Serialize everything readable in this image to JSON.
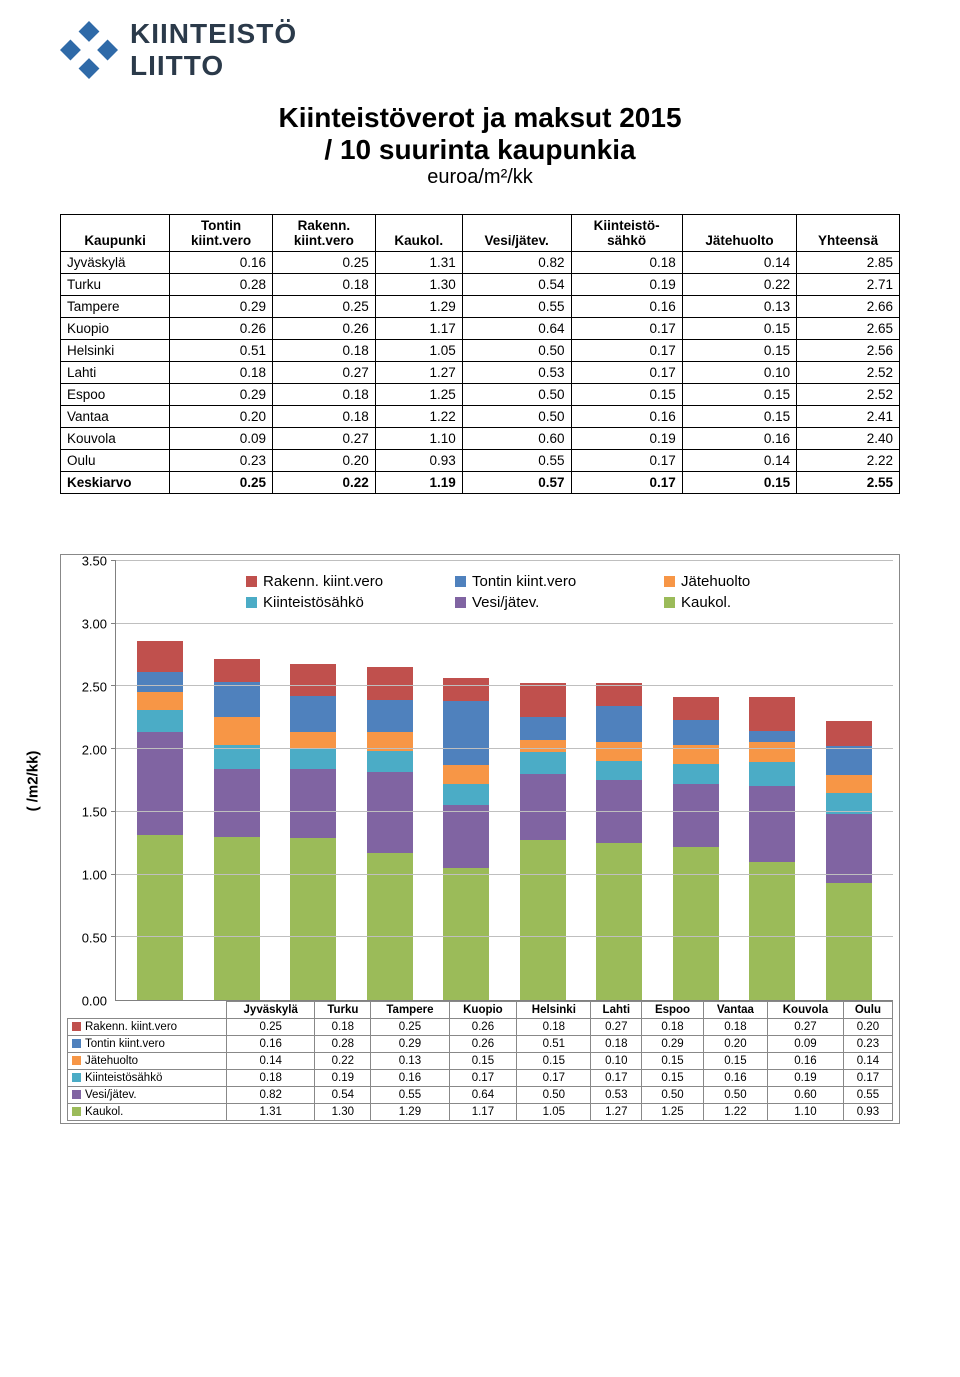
{
  "logo": {
    "line1": "KIINTEISTÖ",
    "line2": "LIITTO",
    "icon_color": "#2f6aa8"
  },
  "title": {
    "line1": "Kiinteistöverot ja maksut 2015",
    "line2": "/ 10 suurinta kaupunkia",
    "subtitle": "euroa/m²/kk"
  },
  "table": {
    "headers": [
      "Kaupunki",
      "Tontin kiint.vero",
      "Rakenn. kiint.vero",
      "Kaukol.",
      "Vesi/jätev.",
      "Kiinteistö-sähkö",
      "Jätehuolto",
      "Yhteensä"
    ],
    "rows": [
      [
        "Jyväskylä",
        "0.16",
        "0.25",
        "1.31",
        "0.82",
        "0.18",
        "0.14",
        "2.85"
      ],
      [
        "Turku",
        "0.28",
        "0.18",
        "1.30",
        "0.54",
        "0.19",
        "0.22",
        "2.71"
      ],
      [
        "Tampere",
        "0.29",
        "0.25",
        "1.29",
        "0.55",
        "0.16",
        "0.13",
        "2.66"
      ],
      [
        "Kuopio",
        "0.26",
        "0.26",
        "1.17",
        "0.64",
        "0.17",
        "0.15",
        "2.65"
      ],
      [
        "Helsinki",
        "0.51",
        "0.18",
        "1.05",
        "0.50",
        "0.17",
        "0.15",
        "2.56"
      ],
      [
        "Lahti",
        "0.18",
        "0.27",
        "1.27",
        "0.53",
        "0.17",
        "0.10",
        "2.52"
      ],
      [
        "Espoo",
        "0.29",
        "0.18",
        "1.25",
        "0.50",
        "0.15",
        "0.15",
        "2.52"
      ],
      [
        "Vantaa",
        "0.20",
        "0.18",
        "1.22",
        "0.50",
        "0.16",
        "0.15",
        "2.41"
      ],
      [
        "Kouvola",
        "0.09",
        "0.27",
        "1.10",
        "0.60",
        "0.19",
        "0.16",
        "2.40"
      ],
      [
        "Oulu",
        "0.23",
        "0.20",
        "0.93",
        "0.55",
        "0.17",
        "0.14",
        "2.22"
      ]
    ],
    "average": [
      "Keskiarvo",
      "0.25",
      "0.22",
      "1.19",
      "0.57",
      "0.17",
      "0.15",
      "2.55"
    ]
  },
  "chart": {
    "ylabel": "( /m2/kk)",
    "ylim": [
      0,
      3.5
    ],
    "ytick_step": 0.5,
    "yticks": [
      "0.00",
      "0.50",
      "1.00",
      "1.50",
      "2.00",
      "2.50",
      "3.00",
      "3.50"
    ],
    "categories": [
      "Jyväskylä",
      "Turku",
      "Tampere",
      "Kuopio",
      "Helsinki",
      "Lahti",
      "Espoo",
      "Vantaa",
      "Kouvola",
      "Oulu"
    ],
    "series": [
      {
        "key": "rakenn",
        "label": "Rakenn. kiint.vero",
        "color": "#c0504d"
      },
      {
        "key": "tontin",
        "label": "Tontin kiint.vero",
        "color": "#4f81bd"
      },
      {
        "key": "jate",
        "label": "Jätehuolto",
        "color": "#f79646"
      },
      {
        "key": "sahko",
        "label": "Kiinteistösähkö",
        "color": "#4bacc6"
      },
      {
        "key": "vesi",
        "label": "Vesi/jätev.",
        "color": "#8064a2"
      },
      {
        "key": "kaukol",
        "label": "Kaukol.",
        "color": "#9bbb59"
      }
    ],
    "legend_order": [
      "rakenn",
      "tontin",
      "jate",
      "sahko",
      "vesi",
      "kaukol"
    ],
    "stack_order_bottom_to_top": [
      "kaukol",
      "vesi",
      "sahko",
      "jate",
      "tontin",
      "rakenn"
    ],
    "data": {
      "rakenn": [
        0.25,
        0.18,
        0.25,
        0.26,
        0.18,
        0.27,
        0.18,
        0.18,
        0.27,
        0.2
      ],
      "tontin": [
        0.16,
        0.28,
        0.29,
        0.26,
        0.51,
        0.18,
        0.29,
        0.2,
        0.09,
        0.23
      ],
      "jate": [
        0.14,
        0.22,
        0.13,
        0.15,
        0.15,
        0.1,
        0.15,
        0.15,
        0.16,
        0.14
      ],
      "sahko": [
        0.18,
        0.19,
        0.16,
        0.17,
        0.17,
        0.17,
        0.15,
        0.16,
        0.19,
        0.17
      ],
      "vesi": [
        0.82,
        0.54,
        0.55,
        0.64,
        0.5,
        0.53,
        0.5,
        0.5,
        0.6,
        0.55
      ],
      "kaukol": [
        1.31,
        1.3,
        1.29,
        1.17,
        1.05,
        1.27,
        1.25,
        1.22,
        1.1,
        0.93
      ]
    },
    "data_table_rows": [
      {
        "key": "rakenn",
        "values": [
          "0.25",
          "0.18",
          "0.25",
          "0.26",
          "0.18",
          "0.27",
          "0.18",
          "0.18",
          "0.27",
          "0.20"
        ]
      },
      {
        "key": "tontin",
        "values": [
          "0.16",
          "0.28",
          "0.29",
          "0.26",
          "0.51",
          "0.18",
          "0.29",
          "0.20",
          "0.09",
          "0.23"
        ]
      },
      {
        "key": "jate",
        "values": [
          "0.14",
          "0.22",
          "0.13",
          "0.15",
          "0.15",
          "0.10",
          "0.15",
          "0.15",
          "0.16",
          "0.14"
        ]
      },
      {
        "key": "sahko",
        "values": [
          "0.18",
          "0.19",
          "0.16",
          "0.17",
          "0.17",
          "0.17",
          "0.15",
          "0.16",
          "0.19",
          "0.17"
        ]
      },
      {
        "key": "vesi",
        "values": [
          "0.82",
          "0.54",
          "0.55",
          "0.64",
          "0.50",
          "0.53",
          "0.50",
          "0.50",
          "0.60",
          "0.55"
        ]
      },
      {
        "key": "kaukol",
        "values": [
          "1.31",
          "1.30",
          "1.29",
          "1.17",
          "1.05",
          "1.27",
          "1.25",
          "1.22",
          "1.10",
          "0.93"
        ]
      }
    ],
    "background_color": "#ffffff",
    "grid_color": "#bfbfbf"
  }
}
